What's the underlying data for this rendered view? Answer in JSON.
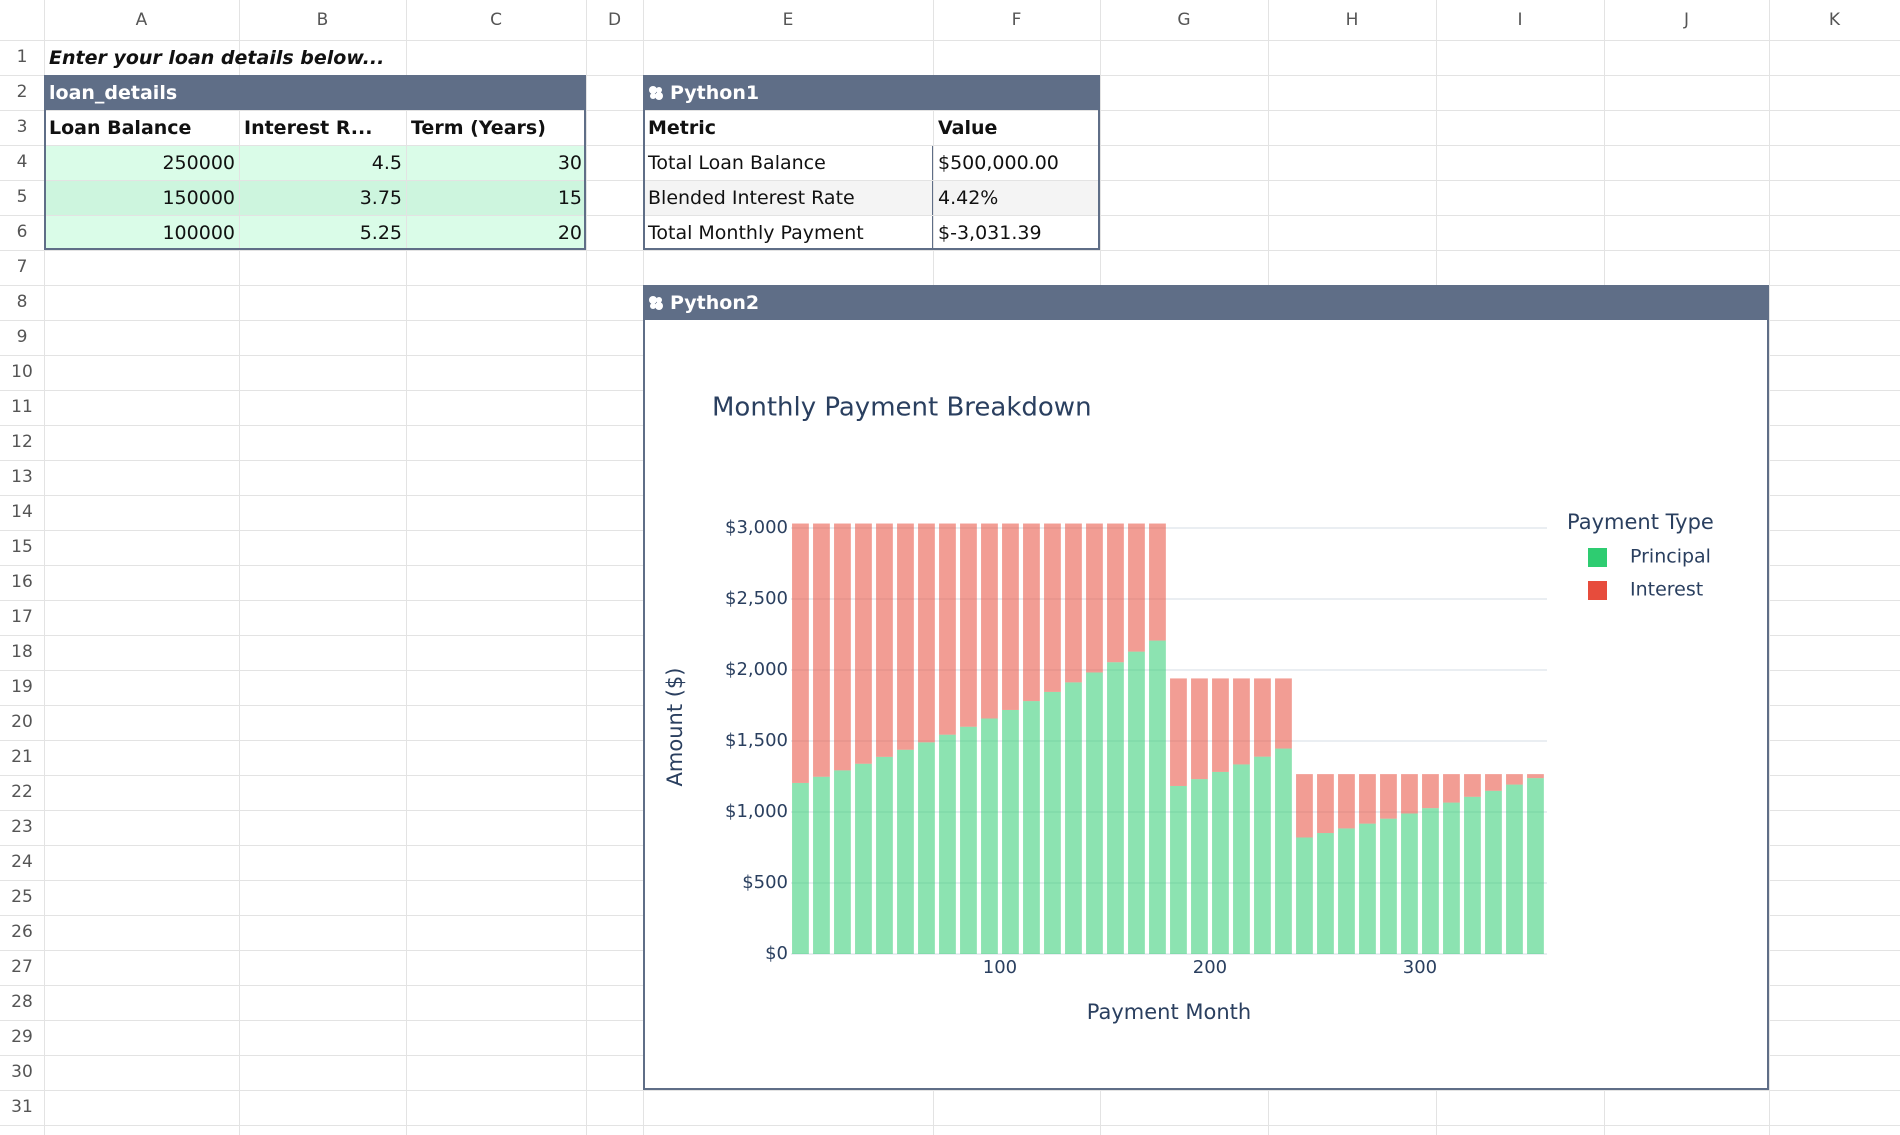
{
  "columns": [
    "A",
    "B",
    "C",
    "D",
    "E",
    "F",
    "G",
    "H",
    "I",
    "J",
    "K"
  ],
  "rows": [
    1,
    2,
    3,
    4,
    5,
    6,
    7,
    8,
    9,
    10,
    11,
    12,
    13,
    14,
    15,
    16,
    17,
    18,
    19,
    20,
    21,
    22,
    23,
    24,
    25,
    26,
    27,
    28,
    29,
    30,
    31
  ],
  "cell_a1": "Enter your loan details below...",
  "loan_details": {
    "name": "loan_details",
    "headers": [
      "Loan Balance",
      "Interest R...",
      "Term (Years)"
    ],
    "rows": [
      [
        250000,
        4.5,
        30
      ],
      [
        150000,
        3.75,
        15
      ],
      [
        100000,
        5.25,
        20
      ]
    ]
  },
  "python1": {
    "name": "Python1",
    "headers": [
      "Metric",
      "Value"
    ],
    "rows": [
      [
        "Total Loan Balance",
        "$500,000.00"
      ],
      [
        "Blended Interest Rate",
        "4.42%"
      ],
      [
        "Total Monthly Payment",
        "$-3,031.39"
      ]
    ]
  },
  "python2": {
    "name": "Python2"
  },
  "chart_data": {
    "type": "bar",
    "barmode": "stack",
    "title": "Monthly Payment Breakdown",
    "x_label": "Payment Month",
    "y_label": "Amount ($)",
    "legend_title": "Payment Type",
    "legend_position": "right",
    "opacity": 0.55,
    "grid": true,
    "x": [
      5,
      15,
      25,
      35,
      45,
      55,
      65,
      75,
      85,
      95,
      105,
      115,
      125,
      135,
      145,
      155,
      165,
      175,
      185,
      195,
      205,
      215,
      225,
      235,
      245,
      255,
      265,
      275,
      285,
      295,
      305,
      315,
      325,
      335,
      345,
      355
    ],
    "series": [
      {
        "name": "Principal",
        "color": "#2ecc71",
        "values": [
          1204.6,
          1248.0,
          1293.0,
          1339.7,
          1388.2,
          1438.3,
          1490.4,
          1544.4,
          1600.3,
          1658.4,
          1718.6,
          1781.0,
          1845.7,
          1912.8,
          1982.4,
          2054.6,
          2129.4,
          2207.1,
          1183.2,
          1231.7,
          1282.2,
          1334.9,
          1389.7,
          1446.7,
          820.5,
          851.8,
          884.3,
          918.1,
          953.1,
          989.4,
          1027.2,
          1066.3,
          1107.0,
          1149.2,
          1193.0,
          1238.5
        ]
      },
      {
        "name": "Interest",
        "color": "#e74c3c",
        "values": [
          1826.8,
          1783.4,
          1738.4,
          1691.7,
          1643.2,
          1593.1,
          1541.0,
          1487.0,
          1431.1,
          1373.0,
          1312.8,
          1250.4,
          1185.7,
          1118.6,
          1049.0,
          976.8,
          902.0,
          824.3,
          757.4,
          708.9,
          658.4,
          605.7,
          550.9,
          493.9,
          446.2,
          414.9,
          382.4,
          348.7,
          313.7,
          277.3,
          239.6,
          200.4,
          159.7,
          117.5,
          73.7,
          28.2
        ]
      }
    ],
    "xlim": [
      0.5,
      360.5
    ],
    "xticks": [
      100,
      200,
      300
    ],
    "ylim": [
      0,
      3190
    ],
    "yticks": [
      {
        "value": 0,
        "label": "$0"
      },
      {
        "value": 500,
        "label": "$500"
      },
      {
        "value": 1000,
        "label": "$1,000"
      },
      {
        "value": 1500,
        "label": "$1,500"
      },
      {
        "value": 2000,
        "label": "$2,000"
      },
      {
        "value": 2500,
        "label": "$2,500"
      },
      {
        "value": 3000,
        "label": "$3,000"
      }
    ]
  }
}
